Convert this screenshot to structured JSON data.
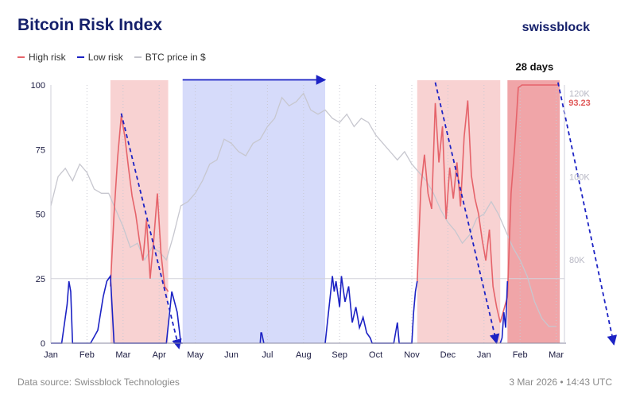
{
  "header": {
    "title": "Bitcoin Risk Index",
    "brand": "swissblock"
  },
  "legend": [
    {
      "label": "High risk",
      "color": "#e5636a"
    },
    {
      "label": "Low risk",
      "color": "#1c22c4"
    },
    {
      "label": "BTC price in $",
      "color": "#c4c4cc"
    }
  ],
  "footer": {
    "source": "Data source: Swissblock Technologies",
    "timestamp": "3 Mar 2026 • 14:43 UTC"
  },
  "chart_data": {
    "type": "line",
    "title": "Bitcoin Risk Index",
    "x_labels": [
      "Jan",
      "Feb",
      "Mar",
      "Apr",
      "May",
      "Jun",
      "Jul",
      "Aug",
      "Sep",
      "Oct",
      "Nov",
      "Dec",
      "Jan",
      "Feb",
      "Mar"
    ],
    "y_left": {
      "ticks": [
        0,
        25,
        50,
        75,
        100
      ],
      "range": [
        0,
        100
      ]
    },
    "y_right": {
      "ticks": [
        "80K",
        "100K",
        "120K"
      ],
      "range_k": [
        60,
        122
      ]
    },
    "regions": [
      {
        "kind": "high",
        "start": 1.65,
        "end": 3.25
      },
      {
        "kind": "low",
        "start": 3.65,
        "end": 7.6
      },
      {
        "kind": "high",
        "start": 10.15,
        "end": 12.45
      },
      {
        "kind": "high",
        "start": 12.65,
        "end": 14.1
      }
    ],
    "annotations": [
      {
        "text": "28 days",
        "x": 13.4,
        "y": 104.5
      },
      {
        "text": "93.23",
        "x": 14.3,
        "y": 93.23
      }
    ],
    "arrows": [
      {
        "from": [
          1.95,
          89
        ],
        "to": [
          3.55,
          -2
        ]
      },
      {
        "from": [
          3.65,
          102
        ],
        "to": [
          7.6,
          102
        ]
      },
      {
        "from": [
          10.65,
          101
        ],
        "to": [
          12.35,
          0
        ]
      },
      {
        "from": [
          14.05,
          101
        ],
        "to": [
          15.6,
          -0.5
        ]
      }
    ],
    "series": [
      {
        "name": "High risk",
        "x": [
          1.65,
          1.75,
          1.85,
          1.95,
          2.05,
          2.15,
          2.25,
          2.35,
          2.45,
          2.55,
          2.65,
          2.75,
          2.85,
          2.95,
          3.05,
          3.15,
          3.25,
          10.15,
          10.25,
          10.35,
          10.45,
          10.55,
          10.65,
          10.75,
          10.85,
          10.95,
          11.05,
          11.15,
          11.25,
          11.35,
          11.45,
          11.55,
          11.65,
          11.75,
          11.85,
          11.95,
          12.05,
          12.15,
          12.25,
          12.35,
          12.45,
          12.65,
          12.75,
          12.85,
          12.95,
          13.05,
          13.15,
          13.25,
          13.45,
          13.65,
          13.85,
          14.05
        ],
        "values": [
          22,
          50,
          72,
          88,
          80,
          68,
          57,
          50,
          40,
          32,
          48,
          25,
          40,
          58,
          35,
          22,
          20,
          24,
          60,
          73,
          58,
          52,
          93,
          70,
          84,
          48,
          68,
          56,
          70,
          53,
          80,
          94,
          65,
          56,
          50,
          40,
          32,
          44,
          22,
          14,
          8,
          18,
          58,
          76,
          99,
          100,
          100,
          100,
          100,
          100,
          100,
          100
        ]
      },
      {
        "name": "Low risk",
        "x": [
          0,
          0.3,
          0.45,
          0.5,
          0.55,
          0.6,
          0.7,
          1.1,
          1.3,
          1.45,
          1.55,
          1.65,
          1.75,
          1.9,
          2,
          2.2,
          2.5,
          3.2,
          3.35,
          3.5,
          3.6,
          3.65,
          5.8,
          5.82,
          5.84,
          5.9,
          7.6,
          7.8,
          7.85,
          7.9,
          8,
          8.05,
          8.15,
          8.25,
          8.35,
          8.45,
          8.55,
          8.65,
          8.75,
          8.85,
          8.9,
          9.5,
          9.6,
          9.65,
          10,
          10.05,
          10.1,
          10.15,
          12.45,
          12.5,
          12.55,
          12.6,
          12.65
        ],
        "values": [
          0,
          0,
          15,
          24,
          20,
          0,
          0,
          0,
          5,
          18,
          24,
          26,
          0,
          0,
          0,
          0,
          0,
          0,
          20,
          12,
          0,
          0,
          0,
          4,
          4,
          0,
          0,
          26,
          20,
          24,
          14,
          26,
          16,
          22,
          8,
          14,
          6,
          10,
          4,
          2,
          0,
          0,
          8,
          0,
          0,
          12,
          20,
          24,
          0,
          2,
          12,
          6,
          24
        ]
      },
      {
        "name": "BTC price in $",
        "x": [
          0,
          0.2,
          0.4,
          0.6,
          0.8,
          1.0,
          1.2,
          1.4,
          1.6,
          1.8,
          2.0,
          2.2,
          2.4,
          2.6,
          2.8,
          3.0,
          3.2,
          3.4,
          3.6,
          3.8,
          4.0,
          4.2,
          4.4,
          4.6,
          4.8,
          5.0,
          5.2,
          5.4,
          5.6,
          5.8,
          6.0,
          6.2,
          6.4,
          6.6,
          6.8,
          7.0,
          7.2,
          7.4,
          7.6,
          7.8,
          8.0,
          8.2,
          8.4,
          8.6,
          8.8,
          9.0,
          9.2,
          9.4,
          9.6,
          9.8,
          10.0,
          10.2,
          10.4,
          10.6,
          10.8,
          11.0,
          11.2,
          11.4,
          11.6,
          11.8,
          12.0,
          12.2,
          12.4,
          12.6,
          12.8,
          13.0,
          13.2,
          13.4,
          13.6,
          13.8,
          14.0
        ],
        "values": [
          93,
          100,
          102,
          99,
          103,
          101,
          97,
          96,
          96,
          92,
          88,
          83,
          84,
          80,
          83,
          82,
          80,
          86,
          93,
          94,
          96,
          99,
          103,
          104,
          109,
          108,
          106,
          105,
          108,
          109,
          112,
          114,
          119,
          117,
          118,
          120,
          116,
          115,
          116,
          114,
          113,
          115,
          112,
          114,
          113,
          110,
          108,
          106,
          104,
          106,
          103,
          101,
          99,
          96,
          92,
          89,
          87,
          84,
          86,
          90,
          91,
          94,
          91,
          87,
          83,
          80,
          76,
          70,
          66,
          64,
          64
        ]
      }
    ]
  }
}
